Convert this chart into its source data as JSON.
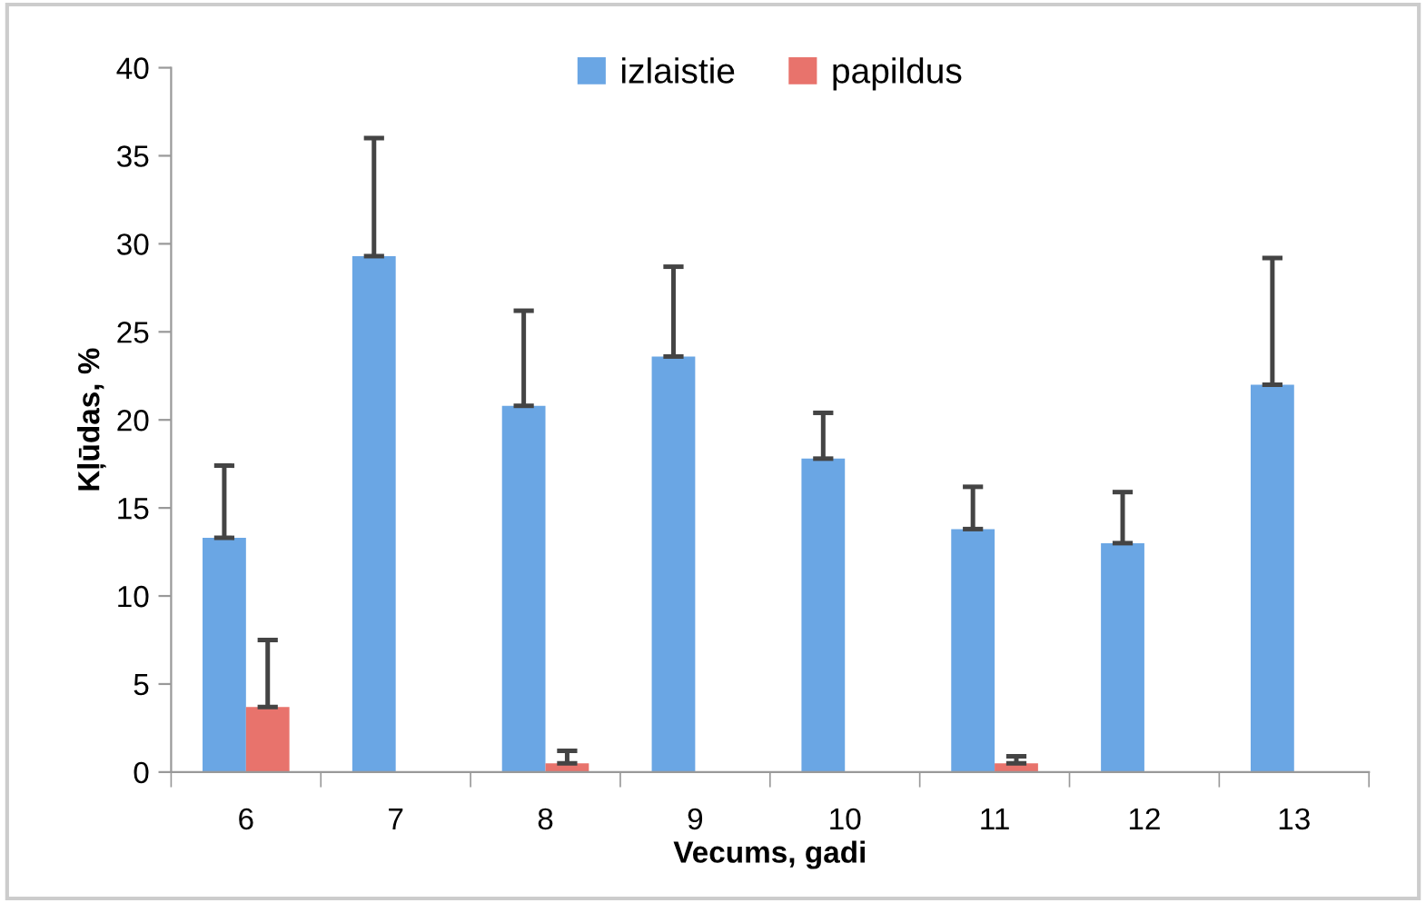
{
  "chart_data": {
    "type": "bar",
    "xlabel": "Vecums, gadi",
    "ylabel": "Kļūdas, %",
    "categories": [
      "6",
      "7",
      "8",
      "9",
      "10",
      "11",
      "12",
      "13"
    ],
    "series": [
      {
        "name": "izlaistie",
        "color": "#6aa6e4",
        "values": [
          13.3,
          29.3,
          20.8,
          23.6,
          17.8,
          13.8,
          13.0,
          22.0
        ],
        "errors": [
          [
            13.3,
            17.4
          ],
          [
            29.3,
            36.0
          ],
          [
            20.8,
            26.2
          ],
          [
            23.6,
            28.7
          ],
          [
            17.8,
            20.4
          ],
          [
            13.8,
            16.2
          ],
          [
            13.0,
            15.9
          ],
          [
            22.0,
            29.2
          ]
        ]
      },
      {
        "name": "papildus",
        "color": "#e8736c",
        "values": [
          3.7,
          0,
          0.5,
          0,
          0,
          0.5,
          0,
          0
        ],
        "errors": [
          [
            3.7,
            7.5
          ],
          null,
          [
            0.5,
            1.2
          ],
          null,
          null,
          [
            0.5,
            0.9
          ],
          null,
          null
        ]
      }
    ],
    "ylim": [
      0,
      40
    ],
    "yticks": [
      0,
      5,
      10,
      15,
      20,
      25,
      30,
      35,
      40
    ],
    "grid": false,
    "legend": "top"
  }
}
